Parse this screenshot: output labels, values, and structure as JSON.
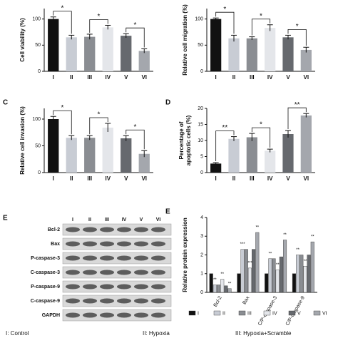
{
  "chart_data": [
    {
      "type": "bar",
      "y_label": [
        "Cell viability (%)"
      ],
      "categories": [
        "I",
        "II",
        "III",
        "IV",
        "V",
        "VI"
      ],
      "values": [
        100,
        65,
        66,
        84,
        68,
        39
      ],
      "errors": [
        4,
        4,
        5,
        4,
        4,
        4
      ],
      "colors": [
        "#111111",
        "#c8ccd4",
        "#8a8d92",
        "#e4e6ea",
        "#66696e",
        "#a4a7ad"
      ],
      "ylim": [
        0,
        120
      ],
      "yticks": [
        0,
        50,
        100
      ],
      "annotations": [
        {
          "text": "*",
          "from": "I",
          "to": "II"
        },
        {
          "text": "*",
          "from": "III",
          "to": "IV"
        },
        {
          "text": "*",
          "from": "V",
          "to": "VI"
        }
      ]
    },
    {
      "type": "bar",
      "y_label": [
        "Relative cell migration (%)"
      ],
      "categories": [
        "I",
        "II",
        "III",
        "IV",
        "V",
        "VI"
      ],
      "values": [
        100,
        63,
        63,
        83,
        65,
        41
      ],
      "errors": [
        2,
        6,
        3,
        6,
        4,
        5
      ],
      "colors": [
        "#111111",
        "#c8ccd4",
        "#8a8d92",
        "#e4e6ea",
        "#66696e",
        "#a4a7ad"
      ],
      "ylim": [
        0,
        120
      ],
      "yticks": [
        0,
        50,
        100
      ],
      "annotations": [
        {
          "text": "*",
          "from": "I",
          "to": "II"
        },
        {
          "text": "*",
          "from": "III",
          "to": "IV"
        },
        {
          "text": "*",
          "from": "V",
          "to": "VI"
        }
      ]
    },
    {
      "type": "bar",
      "panel": "C",
      "y_label": [
        "Relative cell invasion (%)"
      ],
      "categories": [
        "I",
        "II",
        "III",
        "IV",
        "V",
        "VI"
      ],
      "values": [
        100,
        65,
        65,
        84,
        64,
        35
      ],
      "errors": [
        5,
        4,
        4,
        8,
        5,
        6
      ],
      "colors": [
        "#111111",
        "#c8ccd4",
        "#8a8d92",
        "#e4e6ea",
        "#66696e",
        "#a4a7ad"
      ],
      "ylim": [
        0,
        120
      ],
      "yticks": [
        0,
        50,
        100
      ],
      "annotations": [
        {
          "text": "*",
          "from": "I",
          "to": "II"
        },
        {
          "text": "*",
          "from": "III",
          "to": "IV"
        },
        {
          "text": "*",
          "from": "V",
          "to": "VI"
        }
      ]
    },
    {
      "type": "bar",
      "panel": "D",
      "y_label": [
        "Percentage of",
        "apoptotic cells (%)"
      ],
      "categories": [
        "I",
        "II",
        "III",
        "IV",
        "V",
        "VI"
      ],
      "values": [
        2.8,
        10.5,
        11,
        6.8,
        12,
        17.8
      ],
      "errors": [
        0.3,
        0.7,
        1.2,
        0.5,
        1.1,
        0.6
      ],
      "colors": [
        "#111111",
        "#c8ccd4",
        "#8a8d92",
        "#e4e6ea",
        "#66696e",
        "#a4a7ad"
      ],
      "ylim": [
        0,
        20
      ],
      "yticks": [
        0,
        5,
        10,
        15,
        20
      ],
      "annotations": [
        {
          "text": "**",
          "from": "I",
          "to": "II"
        },
        {
          "text": "*",
          "from": "III",
          "to": "IV"
        },
        {
          "text": "**",
          "from": "V",
          "to": "VI"
        }
      ]
    },
    {
      "type": "bar",
      "panel": "E",
      "y_label": [
        "Relative protein expression"
      ],
      "categories": [
        "Bcl-2",
        "Bax",
        "C/P-caspase-3",
        "C/P-caspase-9"
      ],
      "series": [
        {
          "name": "I",
          "color": "#111111",
          "values": [
            1.0,
            1.0,
            1.0,
            1.0
          ]
        },
        {
          "name": "II",
          "color": "#c8ccd4",
          "values": [
            0.4,
            2.3,
            1.8,
            2.0
          ]
        },
        {
          "name": "III",
          "color": "#8a8d92",
          "values": [
            0.4,
            2.3,
            1.8,
            2.0
          ]
        },
        {
          "name": "IV",
          "color": "#e4e6ea",
          "values": [
            0.7,
            1.3,
            1.2,
            1.4
          ]
        },
        {
          "name": "V",
          "color": "#66696e",
          "values": [
            0.35,
            2.3,
            1.9,
            2.0
          ]
        },
        {
          "name": "VI",
          "color": "#a4a7ad",
          "values": [
            0.2,
            3.2,
            2.8,
            2.7
          ]
        }
      ],
      "ylim": [
        0,
        4
      ],
      "yticks": [
        0,
        1,
        2,
        3,
        4
      ],
      "annotations": [
        {
          "text": "**",
          "category": "Bcl-2",
          "series": "II"
        },
        {
          "text": "**",
          "category": "Bcl-2",
          "series": "IV"
        },
        {
          "text": "**",
          "category": "Bcl-2",
          "series": "VI"
        },
        {
          "text": "***",
          "category": "Bax",
          "series": "II"
        },
        {
          "text": "***",
          "category": "Bax",
          "series": "IV"
        },
        {
          "text": "**",
          "category": "Bax",
          "series": "VI"
        },
        {
          "text": "**",
          "category": "C/P-caspase-3",
          "series": "II"
        },
        {
          "text": "**",
          "category": "C/P-caspase-3",
          "series": "IV"
        },
        {
          "text": "**",
          "category": "C/P-caspase-3",
          "series": "VI"
        },
        {
          "text": "**",
          "category": "C/P-caspase-9",
          "series": "II"
        },
        {
          "text": "**",
          "category": "C/P-caspase-9",
          "series": "IV"
        },
        {
          "text": "**",
          "category": "C/P-caspase-9",
          "series": "VI"
        }
      ]
    }
  ],
  "blot": {
    "lanes": [
      "I",
      "II",
      "III",
      "IV",
      "V",
      "VI"
    ],
    "rows": [
      "Bcl-2",
      "Bax",
      "P-caspase-3",
      "C-caspase-3",
      "P-caspase-9",
      "C-caspase-9",
      "GAPDH"
    ]
  },
  "footnote": [
    "I: Control",
    "II: Hypoxia",
    "III: Hypoxia+Scramble"
  ]
}
